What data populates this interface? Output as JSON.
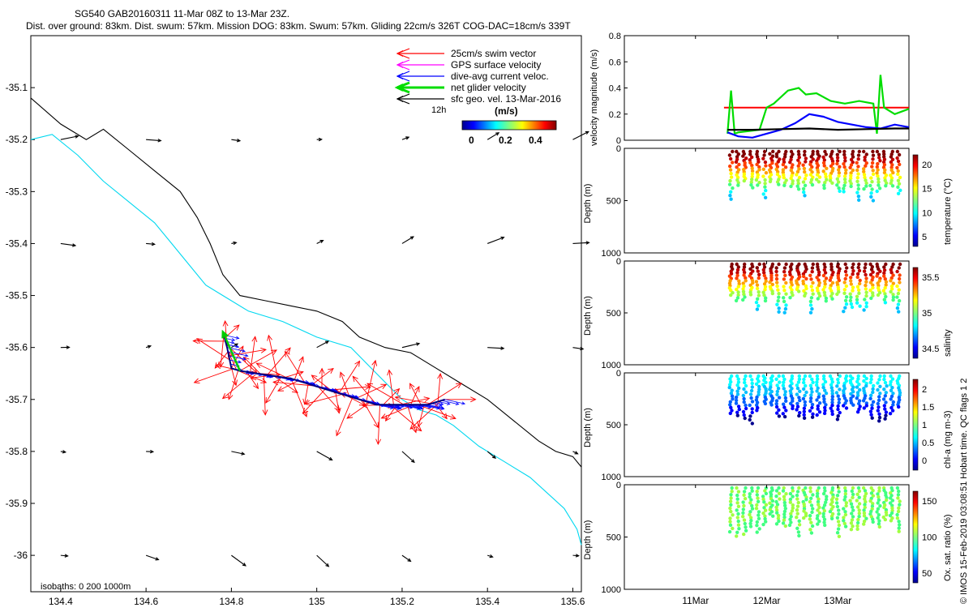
{
  "header": {
    "title_line1": "SG540 GAB20160311 11-Mar 08Z to 13-Mar 23Z.",
    "title_line2": "Dist. over ground: 83km. Dist. swum: 57km. Mission DOG: 83km. Swum: 57km. Gliding 22cm/s 326T COG-DAC=18cm/s 339T"
  },
  "footer": {
    "credit": "© IMOS 15-Feb-2019 03:08:51 Hobart time. QC flags 1  2"
  },
  "map": {
    "isobaths_label": "isobaths: 0   200  1000m",
    "scale_label": "12h",
    "colorbar_title": "(m/s)",
    "colorbar_ticks": [
      "0",
      "0.2",
      "0.4"
    ],
    "legend": [
      {
        "label": "25cm/s swim vector",
        "color": "#ff0000"
      },
      {
        "label": "GPS surface velocity",
        "color": "#ff00ff"
      },
      {
        "label": "dive-avg current veloc.",
        "color": "#0000ff"
      },
      {
        "label": "net glider velocity",
        "color": "#00dd00"
      },
      {
        "label": "sfc geo. vel. 13-Mar-2016",
        "color": "#000000"
      }
    ]
  },
  "panels": {
    "velocity": {
      "ylabel": "velocity magnitude (m/s)",
      "yticks": [
        "0.8",
        "0.6",
        "0.4",
        "0.2",
        "0"
      ]
    },
    "temperature": {
      "ylabel": "Depth (m)",
      "yticks": [
        "0",
        "500",
        "1000"
      ],
      "cbar_label": "temperature (°C)",
      "cbar_ticks": [
        "20",
        "15",
        "10",
        "5"
      ]
    },
    "salinity": {
      "ylabel": "Depth (m)",
      "yticks": [
        "0",
        "500",
        "1000"
      ],
      "cbar_label": "salinity",
      "cbar_ticks": [
        "35.5",
        "35",
        "34.5"
      ]
    },
    "chla": {
      "ylabel": "Depth (m)",
      "yticks": [
        "0",
        "500",
        "1000"
      ],
      "cbar_label": "chl-a (mg m-3)",
      "cbar_ticks": [
        "2",
        "1.5",
        "1",
        "0.5",
        "0"
      ]
    },
    "oxygen": {
      "ylabel": "Depth (m)",
      "yticks": [
        "0",
        "500",
        "1000"
      ],
      "cbar_label": "Ox. sat. ratio (%)",
      "cbar_ticks": [
        "150",
        "100",
        "50"
      ]
    },
    "xticks": [
      "11Mar",
      "12Mar",
      "13Mar"
    ]
  },
  "chart_data": [
    {
      "type": "scatter",
      "xlabel": "",
      "ylabel": "",
      "x_ticks": [
        "134.4",
        "134.6",
        "134.8",
        "135",
        "135.2",
        "135.4",
        "135.6"
      ],
      "y_ticks": [
        "-35.1",
        "-35.2",
        "-35.3",
        "-35.4",
        "-35.5",
        "-35.6",
        "-35.7",
        "-35.8",
        "-35.9",
        "-36"
      ],
      "xlim": [
        134.33,
        135.62
      ],
      "ylim": [
        -36.07,
        -35.0
      ],
      "glider_track": {
        "lon": [
          135.3,
          135.26,
          135.22,
          135.18,
          135.14,
          135.1,
          135.06,
          135.02,
          134.98,
          134.94,
          134.9,
          134.86,
          134.82,
          134.8,
          134.79,
          134.78
        ],
        "lat": [
          -35.7,
          -35.71,
          -35.71,
          -35.71,
          -35.71,
          -35.7,
          -35.69,
          -35.68,
          -35.67,
          -35.66,
          -35.655,
          -35.65,
          -35.645,
          -35.64,
          -35.6,
          -35.57
        ]
      },
      "isobath_200m": {
        "lon": [
          134.33,
          134.4,
          134.46,
          134.5,
          134.56,
          134.62,
          134.68,
          134.72,
          134.75,
          134.78,
          134.82,
          134.88,
          134.94,
          135.0,
          135.06,
          135.1,
          135.16,
          135.22,
          135.28,
          135.34,
          135.4,
          135.46,
          135.52,
          135.56,
          135.6,
          135.62
        ],
        "lat": [
          -35.12,
          -35.17,
          -35.2,
          -35.18,
          -35.22,
          -35.26,
          -35.3,
          -35.35,
          -35.4,
          -35.46,
          -35.5,
          -35.51,
          -35.52,
          -35.53,
          -35.55,
          -35.58,
          -35.6,
          -35.61,
          -35.64,
          -35.67,
          -35.7,
          -35.74,
          -35.78,
          -35.8,
          -35.81,
          -35.83
        ]
      },
      "isobath_1000m": {
        "lon": [
          134.33,
          134.38,
          134.44,
          134.5,
          134.56,
          134.62,
          134.66,
          134.7,
          134.74,
          134.78,
          134.84,
          134.92,
          135.0,
          135.08,
          135.14,
          135.2,
          135.24,
          135.28,
          135.32,
          135.38,
          135.44,
          135.5,
          135.54,
          135.58,
          135.61,
          135.62
        ],
        "lat": [
          -35.2,
          -35.19,
          -35.23,
          -35.28,
          -35.32,
          -35.36,
          -35.4,
          -35.44,
          -35.48,
          -35.5,
          -35.53,
          -35.55,
          -35.58,
          -35.6,
          -35.65,
          -35.7,
          -35.72,
          -35.73,
          -35.75,
          -35.79,
          -35.82,
          -35.85,
          -35.88,
          -35.91,
          -35.95,
          -35.98
        ]
      }
    },
    {
      "type": "line",
      "x_ticks": [
        "11Mar",
        "12Mar",
        "13Mar"
      ],
      "ylim": [
        0,
        0.8
      ],
      "series": [
        {
          "color": "#ff0000",
          "x": [
            11.4,
            11.6,
            11.8,
            12.0,
            12.2,
            12.4,
            12.6,
            12.8,
            13.0,
            13.2,
            13.4,
            13.6,
            13.8,
            14.0
          ],
          "values": [
            0.25,
            0.25,
            0.25,
            0.25,
            0.25,
            0.25,
            0.25,
            0.25,
            0.25,
            0.25,
            0.25,
            0.25,
            0.25,
            0.25
          ]
        },
        {
          "color": "#00dd00",
          "x": [
            11.45,
            11.5,
            11.55,
            11.6,
            11.9,
            12.0,
            12.1,
            12.3,
            12.45,
            12.55,
            12.7,
            12.9,
            13.1,
            13.3,
            13.5,
            13.55,
            13.6,
            13.65,
            13.8,
            14.0
          ],
          "values": [
            0.05,
            0.38,
            0.05,
            0.06,
            0.08,
            0.25,
            0.28,
            0.38,
            0.4,
            0.35,
            0.36,
            0.3,
            0.28,
            0.3,
            0.28,
            0.05,
            0.5,
            0.25,
            0.2,
            0.24
          ]
        },
        {
          "color": "#0000ff",
          "x": [
            11.45,
            11.6,
            11.8,
            12.0,
            12.2,
            12.4,
            12.6,
            12.8,
            13.0,
            13.2,
            13.4,
            13.6,
            13.8,
            14.0
          ],
          "values": [
            0.06,
            0.03,
            0.02,
            0.05,
            0.08,
            0.13,
            0.2,
            0.18,
            0.14,
            0.12,
            0.1,
            0.09,
            0.12,
            0.1
          ]
        },
        {
          "color": "#000000",
          "x": [
            11.45,
            11.8,
            12.2,
            12.6,
            13.0,
            13.4,
            13.8,
            14.0
          ],
          "values": [
            0.08,
            0.08,
            0.085,
            0.09,
            0.08,
            0.085,
            0.09,
            0.09
          ]
        }
      ]
    }
  ]
}
